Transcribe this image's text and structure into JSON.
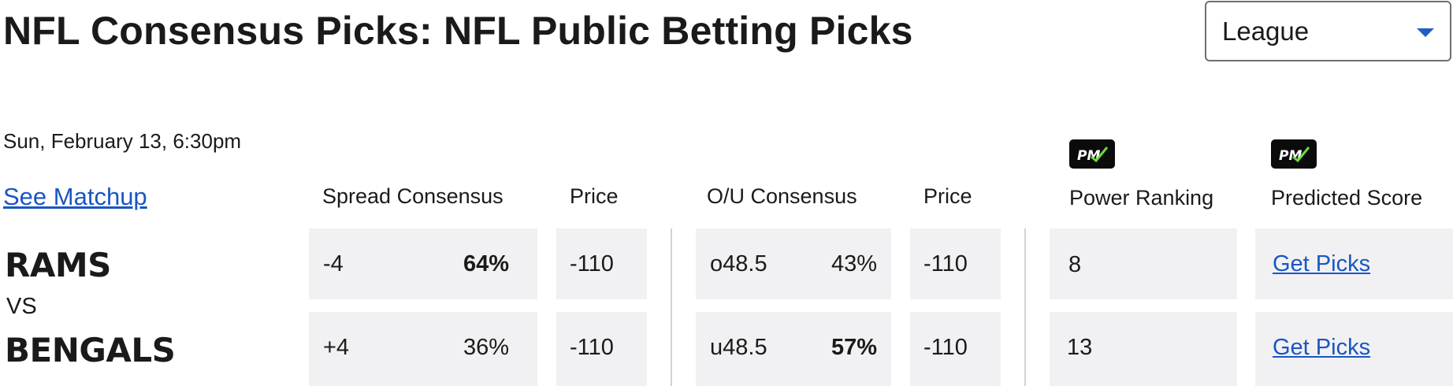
{
  "header": {
    "title": "NFL Consensus Picks: NFL Public Betting Picks",
    "league_select": "League"
  },
  "game": {
    "datetime": "Sun, February 13, 6:30pm",
    "see_matchup": "See Matchup",
    "vs": "VS",
    "columns": {
      "spread_consensus": "Spread Consensus",
      "spread_price": "Price",
      "ou_consensus": "O/U Consensus",
      "ou_price": "Price",
      "power_ranking": "Power Ranking",
      "predicted_score": "Predicted Score",
      "pm_badge": "PM"
    },
    "rows": [
      {
        "team": "RAMS",
        "spread": "-4",
        "spread_pct": "64%",
        "spread_price": "-110",
        "ou": "o48.5",
        "ou_pct": "43%",
        "ou_price": "-110",
        "power_ranking": "8",
        "predicted": "Get Picks"
      },
      {
        "team": "BENGALS",
        "spread": "+4",
        "spread_pct": "36%",
        "spread_price": "-110",
        "ou": "u48.5",
        "ou_pct": "57%",
        "ou_price": "-110",
        "power_ranking": "13",
        "predicted": "Get Picks"
      }
    ]
  },
  "colors": {
    "link": "#1a56c2",
    "cell_bg": "#f1f1f3",
    "chevron": "#1f5fc4",
    "pm_badge_bg": "#0b0b0b",
    "pm_check": "#6fd93f"
  },
  "icons": {
    "league_chevron": "chevron-down-icon",
    "pm_logo": "pm-logo-icon"
  }
}
